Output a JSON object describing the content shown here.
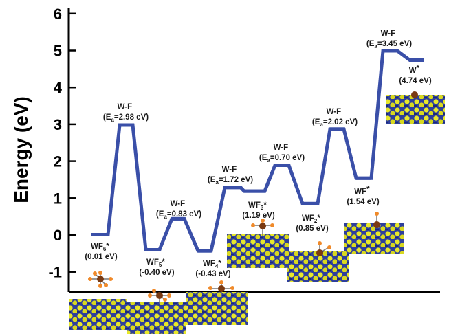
{
  "chart_data": {
    "type": "line",
    "title": "",
    "xlabel": "",
    "ylabel": "Energy (eV)",
    "ylim": [
      -1.55,
      6
    ],
    "yticks": [
      6,
      5,
      4,
      3,
      2,
      1,
      0,
      -1
    ],
    "grid": false,
    "legend": "none",
    "line_color": "#3a4fa8",
    "levels": [
      {
        "name": "WF6*",
        "energy": 0.01,
        "kind": "minimum"
      },
      {
        "name": "W-F TS1",
        "energy": 2.98,
        "kind": "transition"
      },
      {
        "name": "WF5*",
        "energy": -0.4,
        "kind": "minimum"
      },
      {
        "name": "W-F TS2",
        "energy": 0.44,
        "kind": "transition"
      },
      {
        "name": "WF4*",
        "energy": -0.43,
        "kind": "minimum"
      },
      {
        "name": "W-F TS3",
        "energy": 1.29,
        "kind": "transition"
      },
      {
        "name": "WF3*",
        "energy": 1.19,
        "kind": "minimum"
      },
      {
        "name": "W-F TS4",
        "energy": 1.89,
        "kind": "transition"
      },
      {
        "name": "WF2*",
        "energy": 0.85,
        "kind": "minimum"
      },
      {
        "name": "W-F TS5",
        "energy": 2.87,
        "kind": "transition"
      },
      {
        "name": "WF*",
        "energy": 1.54,
        "kind": "minimum"
      },
      {
        "name": "W-F TS6",
        "energy": 4.99,
        "kind": "transition"
      },
      {
        "name": "W*",
        "energy": 4.74,
        "kind": "minimum"
      }
    ],
    "annotations": [
      {
        "id": "ts1",
        "line1": "W-F",
        "line2_pre": "(E",
        "line2_sub": "a",
        "line2_post": "=2.98 eV)"
      },
      {
        "id": "ts2",
        "line1": "W-F",
        "line2_pre": "(E",
        "line2_sub": "a",
        "line2_post": "=0.83 eV)"
      },
      {
        "id": "ts3",
        "line1": "W-F",
        "line2_pre": "(E",
        "line2_sub": "a",
        "line2_post": "=1.72 eV)"
      },
      {
        "id": "ts4",
        "line1": "W-F",
        "line2_pre": "(E",
        "line2_sub": "a",
        "line2_post": "=0.70 eV)"
      },
      {
        "id": "ts5",
        "line1": "W-F",
        "line2_pre": "(E",
        "line2_sub": "a",
        "line2_post": "=2.02 eV)"
      },
      {
        "id": "ts6",
        "line1": "W-F",
        "line2_pre": "(E",
        "line2_sub": "a",
        "line2_post": "=3.45 eV)"
      },
      {
        "id": "m1",
        "line1_pre": "WF",
        "line1_sub": "6",
        "line1_post": "*",
        "line2": "(0.01 eV)"
      },
      {
        "id": "m2",
        "line1_pre": "WF",
        "line1_sub": "5",
        "line1_post": "*",
        "line2": "(-0.40 eV)"
      },
      {
        "id": "m3",
        "line1_pre": "WF",
        "line1_sub": "4",
        "line1_post": "*",
        "line2": "(-0.43 eV)"
      },
      {
        "id": "m4",
        "line1_pre": "WF",
        "line1_sub": "3",
        "line1_post": "*",
        "line2": "(1.19 eV)"
      },
      {
        "id": "m5",
        "line1_pre": "WF",
        "line1_sub": "2",
        "line1_post": "*",
        "line2": "(0.85 eV)"
      },
      {
        "id": "m6",
        "line1_pre": "WF",
        "line1_sub": "",
        "line1_post": "*",
        "line2": "(1.54 eV)"
      },
      {
        "id": "m7",
        "line1_pre": "W",
        "line1_sub": "",
        "line1_post": "*",
        "line2": "(4.74 eV)"
      }
    ]
  }
}
